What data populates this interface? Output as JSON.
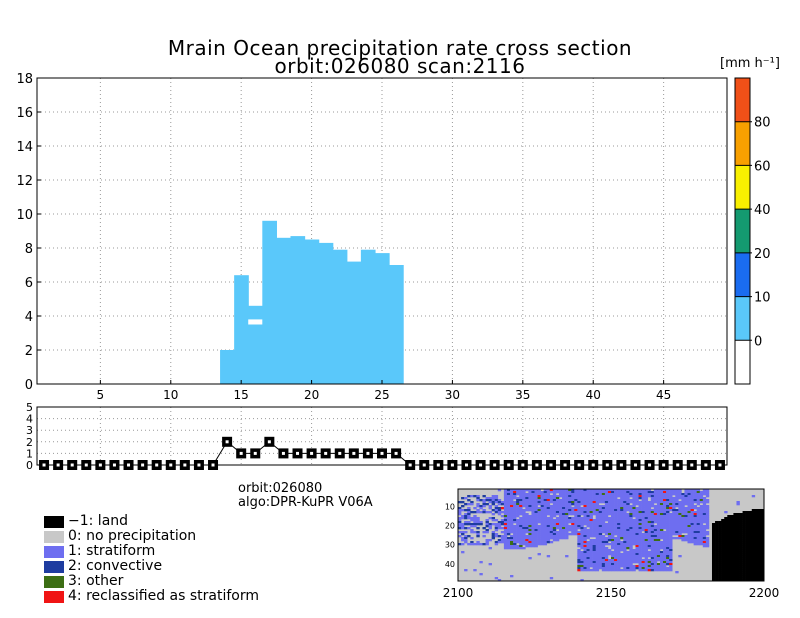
{
  "title_line1": "Mrain Ocean precipitation rate cross section",
  "title_line2": "orbit:026080     scan:2116",
  "colorbar": {
    "unit": "[mm h⁻¹]",
    "bands": [
      {
        "color": "#ffffff"
      },
      {
        "color": "#5ac8fa"
      },
      {
        "color": "#1a6cf0"
      },
      {
        "color": "#149a70"
      },
      {
        "color": "#f8f000"
      },
      {
        "color": "#f8a000"
      },
      {
        "color": "#f05018"
      }
    ],
    "tick_labels": [
      {
        "value": 0,
        "label": "0"
      },
      {
        "value": 10,
        "label": "10"
      },
      {
        "value": 20,
        "label": "20"
      },
      {
        "value": 40,
        "label": "40"
      },
      {
        "value": 60,
        "label": "60"
      },
      {
        "value": 80,
        "label": "80"
      }
    ]
  },
  "chart_data": [
    {
      "type": "bar",
      "xlim": [
        0.5,
        49.5
      ],
      "ylim": [
        0,
        18
      ],
      "grid": true,
      "yticks": [
        0,
        2,
        4,
        6,
        8,
        10,
        12,
        14,
        16,
        18
      ],
      "xticks": [
        5,
        10,
        15,
        20,
        25,
        30,
        35,
        40,
        45
      ],
      "x": [
        14,
        15,
        16,
        17,
        18,
        19,
        20,
        21,
        22,
        23,
        24,
        25,
        26
      ],
      "values": [
        2.0,
        6.4,
        4.6,
        9.6,
        8.6,
        8.7,
        8.5,
        8.3,
        7.9,
        7.2,
        7.9,
        7.7,
        7.0
      ],
      "gap": {
        "x": 16,
        "y_from": 3.5,
        "y_to": 3.8
      },
      "bar_color": "#5ac8fa"
    },
    {
      "type": "line",
      "xlim": [
        0.5,
        49.5
      ],
      "ylim": [
        0,
        5
      ],
      "grid": true,
      "yticks": [
        0,
        1,
        2,
        3,
        4,
        5
      ],
      "x": [
        1,
        2,
        3,
        4,
        5,
        6,
        7,
        8,
        9,
        10,
        11,
        12,
        13,
        14,
        15,
        16,
        17,
        18,
        19,
        20,
        21,
        22,
        23,
        24,
        25,
        26,
        27,
        28,
        29,
        30,
        31,
        32,
        33,
        34,
        35,
        36,
        37,
        38,
        39,
        40,
        41,
        42,
        43,
        44,
        45,
        46,
        47,
        48,
        49
      ],
      "values": [
        0,
        0,
        0,
        0,
        0,
        0,
        0,
        0,
        0,
        0,
        0,
        0,
        0,
        2,
        1,
        1,
        2,
        1,
        1,
        1,
        1,
        1,
        1,
        1,
        1,
        1,
        0,
        0,
        0,
        0,
        0,
        0,
        0,
        0,
        0,
        0,
        0,
        0,
        0,
        0,
        0,
        0,
        0,
        0,
        0,
        0,
        0,
        0,
        0
      ]
    }
  ],
  "info": {
    "orbit_line": "orbit:026080",
    "algo_line": "algo:DPR-KuPR V06A"
  },
  "legend": [
    {
      "label": "−1: land",
      "color": "#000000"
    },
    {
      "label": "0: no precipitation",
      "color": "#c8c8c8"
    },
    {
      "label": "1: stratiform",
      "color": "#6e6ef0"
    },
    {
      "label": "2: convective",
      "color": "#1e3ca0"
    },
    {
      "label": "3: other",
      "color": "#3c6e14"
    },
    {
      "label": "4: reclassified as stratiform",
      "color": "#f01414"
    }
  ],
  "map": {
    "x_ticks": [
      {
        "value": 2100,
        "label": "2100"
      },
      {
        "value": 2150,
        "label": "2150"
      },
      {
        "value": 2200,
        "label": "2200"
      }
    ],
    "y_ticks": [
      {
        "value": 10,
        "label": "10"
      },
      {
        "value": 20,
        "label": "20"
      },
      {
        "value": 30,
        "label": "30"
      },
      {
        "value": 40,
        "label": "40"
      }
    ],
    "xlim": [
      2100,
      2200
    ],
    "ylim": [
      1,
      49
    ]
  }
}
